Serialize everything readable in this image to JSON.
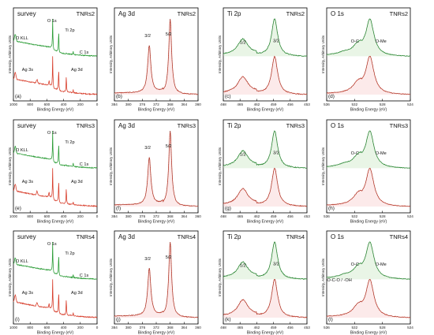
{
  "figure": {
    "type": "xps-spectra-grid",
    "colors": {
      "green": "#2f9e3a",
      "red": "#d8402e",
      "fit_dark": "#333333",
      "pink_fill": "#f6c3c3",
      "light_green_fill": "#bfe3b8"
    }
  },
  "chart_data": [
    {
      "panel_letter": "(a)",
      "title": "survey",
      "sample": "TNRs2",
      "type": "line",
      "xlabel": "Binding Energy (eV)",
      "ylabel": "Intensity, Arbitrary Units",
      "xlim": [
        1000,
        0
      ],
      "x_ticks": [
        "1000",
        "800",
        "600",
        "400",
        "200",
        "0"
      ],
      "peaks": [
        {
          "name": "O KLL",
          "x": 978
        },
        {
          "name": "O 1s",
          "x": 530
        },
        {
          "name": "Ti 2p",
          "x": 459
        },
        {
          "name": "C 1s",
          "x": 285
        },
        {
          "name": "Ag 3s",
          "x": 718
        },
        {
          "name": "Ag 3d",
          "x": 368
        }
      ],
      "series": [
        {
          "color": "green"
        },
        {
          "color": "red"
        }
      ]
    },
    {
      "panel_letter": "(b)",
      "title": "Ag 3d",
      "sample": "TNRs2",
      "type": "line",
      "xlabel": "Binding Energy (eV)",
      "ylabel": "Intensity, Arbitrary Units",
      "xlim": [
        384,
        360
      ],
      "x_ticks": [
        "384",
        "380",
        "376",
        "372",
        "368",
        "364",
        "360"
      ],
      "peaks": [
        {
          "name": "3/2",
          "x": 374
        },
        {
          "name": "5/2",
          "x": 368
        }
      ],
      "series": [
        {
          "color": "red"
        }
      ]
    },
    {
      "panel_letter": "(c)",
      "title": "Ti 2p",
      "sample": "TNRs2",
      "type": "line",
      "xlabel": "Binding Energy (eV)",
      "ylabel": "Intensity, Arbitrary Units",
      "xlim": [
        468,
        453
      ],
      "x_ticks": [
        "468",
        "465",
        "462",
        "459",
        "456",
        "453"
      ],
      "peaks": [
        {
          "name": "1/2",
          "x": 464.5
        },
        {
          "name": "3/2",
          "x": 458.8
        }
      ],
      "series": [
        {
          "color": "green"
        },
        {
          "color": "red"
        }
      ]
    },
    {
      "panel_letter": "(d)",
      "title": "O 1s",
      "sample": "TNRs2",
      "type": "line",
      "xlabel": "Binding Energy (eV)",
      "ylabel": "Intensity, Arbitrary Units",
      "xlim": [
        536,
        524
      ],
      "x_ticks": [
        "536",
        "532",
        "528",
        "524"
      ],
      "peaks": [
        {
          "name": "O-C",
          "x": 531.5
        },
        {
          "name": "O-Me",
          "x": 529.8
        }
      ],
      "series": [
        {
          "color": "green"
        },
        {
          "color": "red"
        }
      ]
    },
    {
      "panel_letter": "(e)",
      "title": "survey",
      "sample": "TNRs3",
      "type": "line",
      "xlabel": "Binding Energy (eV)",
      "ylabel": "Intensity, Arbitrary Units",
      "xlim": [
        1000,
        0
      ],
      "x_ticks": [
        "1000",
        "800",
        "600",
        "400",
        "200",
        "0"
      ],
      "peaks": [
        {
          "name": "O KLL",
          "x": 978
        },
        {
          "name": "O 1s",
          "x": 530
        },
        {
          "name": "Ti 2p",
          "x": 459
        },
        {
          "name": "C 1s",
          "x": 285
        },
        {
          "name": "Ag 3s",
          "x": 718
        },
        {
          "name": "Ag 3d",
          "x": 368
        }
      ],
      "series": [
        {
          "color": "green"
        },
        {
          "color": "red"
        }
      ]
    },
    {
      "panel_letter": "(f)",
      "title": "Ag 3d",
      "sample": "TNRs3",
      "type": "line",
      "xlabel": "Binding Energy (eV)",
      "ylabel": "Intensity, Arbitrary Units",
      "xlim": [
        384,
        360
      ],
      "x_ticks": [
        "384",
        "380",
        "376",
        "372",
        "368",
        "364",
        "360"
      ],
      "peaks": [
        {
          "name": "3/2",
          "x": 374
        },
        {
          "name": "5/2",
          "x": 368
        }
      ],
      "series": [
        {
          "color": "red"
        }
      ]
    },
    {
      "panel_letter": "(g)",
      "title": "Ti 2p",
      "sample": "TNRs3",
      "type": "line",
      "xlabel": "Binding Energy (eV)",
      "ylabel": "Intensity, Arbitrary Units",
      "xlim": [
        468,
        453
      ],
      "x_ticks": [
        "468",
        "465",
        "462",
        "459",
        "456",
        "453"
      ],
      "peaks": [
        {
          "name": "1/2",
          "x": 464.5
        },
        {
          "name": "3/2",
          "x": 458.8
        }
      ],
      "series": [
        {
          "color": "green"
        },
        {
          "color": "red"
        }
      ]
    },
    {
      "panel_letter": "(h)",
      "title": "O 1s",
      "sample": "TNRs3",
      "type": "line",
      "xlabel": "Binding Energy (eV)",
      "ylabel": "Intensity, Arbitrary Units",
      "xlim": [
        536,
        524
      ],
      "x_ticks": [
        "536",
        "532",
        "528",
        "524"
      ],
      "peaks": [
        {
          "name": "O-C",
          "x": 531.5
        },
        {
          "name": "O-Me",
          "x": 529.8
        }
      ],
      "series": [
        {
          "color": "green"
        },
        {
          "color": "red"
        }
      ]
    },
    {
      "panel_letter": "(i)",
      "title": "survey",
      "sample": "TNRs4",
      "type": "line",
      "xlabel": "Binding Energy (eV)",
      "ylabel": "Intensity, Arbitrary Units",
      "xlim": [
        1000,
        0
      ],
      "x_ticks": [
        "1000",
        "800",
        "600",
        "400",
        "200",
        "0"
      ],
      "peaks": [
        {
          "name": "O KLL",
          "x": 978
        },
        {
          "name": "O 1s",
          "x": 530
        },
        {
          "name": "Ti 2p",
          "x": 459
        },
        {
          "name": "C 1s",
          "x": 285
        },
        {
          "name": "Ag 3s",
          "x": 718
        },
        {
          "name": "Ag 3d",
          "x": 368
        }
      ],
      "series": [
        {
          "color": "green"
        },
        {
          "color": "red"
        }
      ]
    },
    {
      "panel_letter": "(j)",
      "title": "Ag 3d",
      "sample": "TNRs4",
      "type": "line",
      "xlabel": "Binding Energy (eV)",
      "ylabel": "Intensity, Arbitrary Units",
      "xlim": [
        384,
        360
      ],
      "x_ticks": [
        "384",
        "380",
        "376",
        "372",
        "368",
        "364",
        "360"
      ],
      "peaks": [
        {
          "name": "3/2",
          "x": 374
        },
        {
          "name": "5/2",
          "x": 368
        }
      ],
      "series": [
        {
          "color": "red"
        }
      ]
    },
    {
      "panel_letter": "(k)",
      "title": "Ti 2p",
      "sample": "TNRs4",
      "type": "line",
      "xlabel": "Binding Energy (eV)",
      "ylabel": "Intensity, Arbitrary Units",
      "xlim": [
        468,
        453
      ],
      "x_ticks": [
        "468",
        "465",
        "462",
        "459",
        "456",
        "453"
      ],
      "peaks": [
        {
          "name": "1/2",
          "x": 464.5
        },
        {
          "name": "3/2",
          "x": 458.8
        }
      ],
      "series": [
        {
          "color": "green"
        },
        {
          "color": "red"
        }
      ]
    },
    {
      "panel_letter": "(l)",
      "title": "O 1s",
      "sample": "TNRs4",
      "type": "line",
      "xlabel": "Binding Energy (eV)",
      "ylabel": "Intensity, Arbitrary Units",
      "xlim": [
        536,
        524
      ],
      "x_ticks": [
        "536",
        "532",
        "528",
        "524"
      ],
      "peaks": [
        {
          "name": "O-C-O / -OH",
          "x": 533.5
        },
        {
          "name": "O-C",
          "x": 531.5
        },
        {
          "name": "O-Me",
          "x": 529.8
        }
      ],
      "series": [
        {
          "color": "green"
        },
        {
          "color": "red"
        }
      ]
    }
  ]
}
